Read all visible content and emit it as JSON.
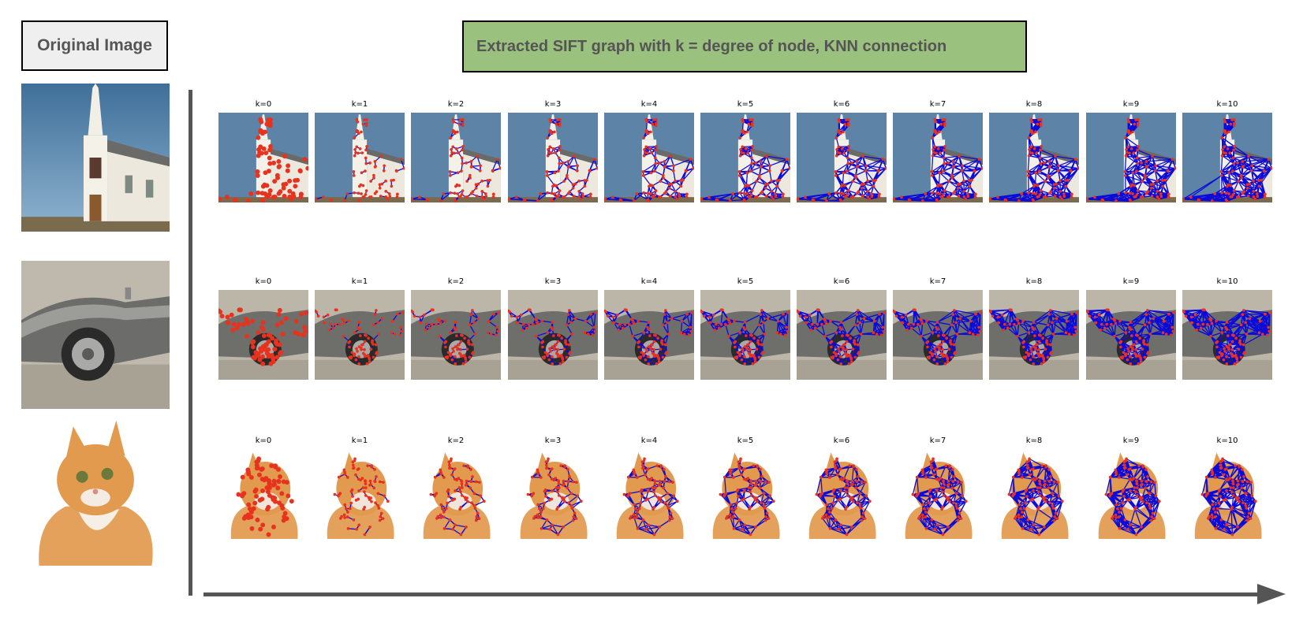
{
  "header": {
    "original_label": "Original Image",
    "title": "Extracted SIFT graph with k = degree of node, KNN connection"
  },
  "k_labels": [
    "k=0",
    "k=1",
    "k=2",
    "k=3",
    "k=4",
    "k=5",
    "k=6",
    "k=7",
    "k=8",
    "k=9",
    "k=10"
  ],
  "rows": [
    {
      "subject": "church",
      "thumb_top": 143,
      "label_top": 127
    },
    {
      "subject": "car",
      "thumb_top": 368,
      "label_top": 352
    },
    {
      "subject": "cat",
      "thumb_top": 570,
      "label_top": 554
    }
  ],
  "colors": {
    "keypoint": "#e8321e",
    "edge": "#0a0adc",
    "axis": "#555555",
    "title_box": "#9bc17e",
    "label_box": "#efefef"
  }
}
